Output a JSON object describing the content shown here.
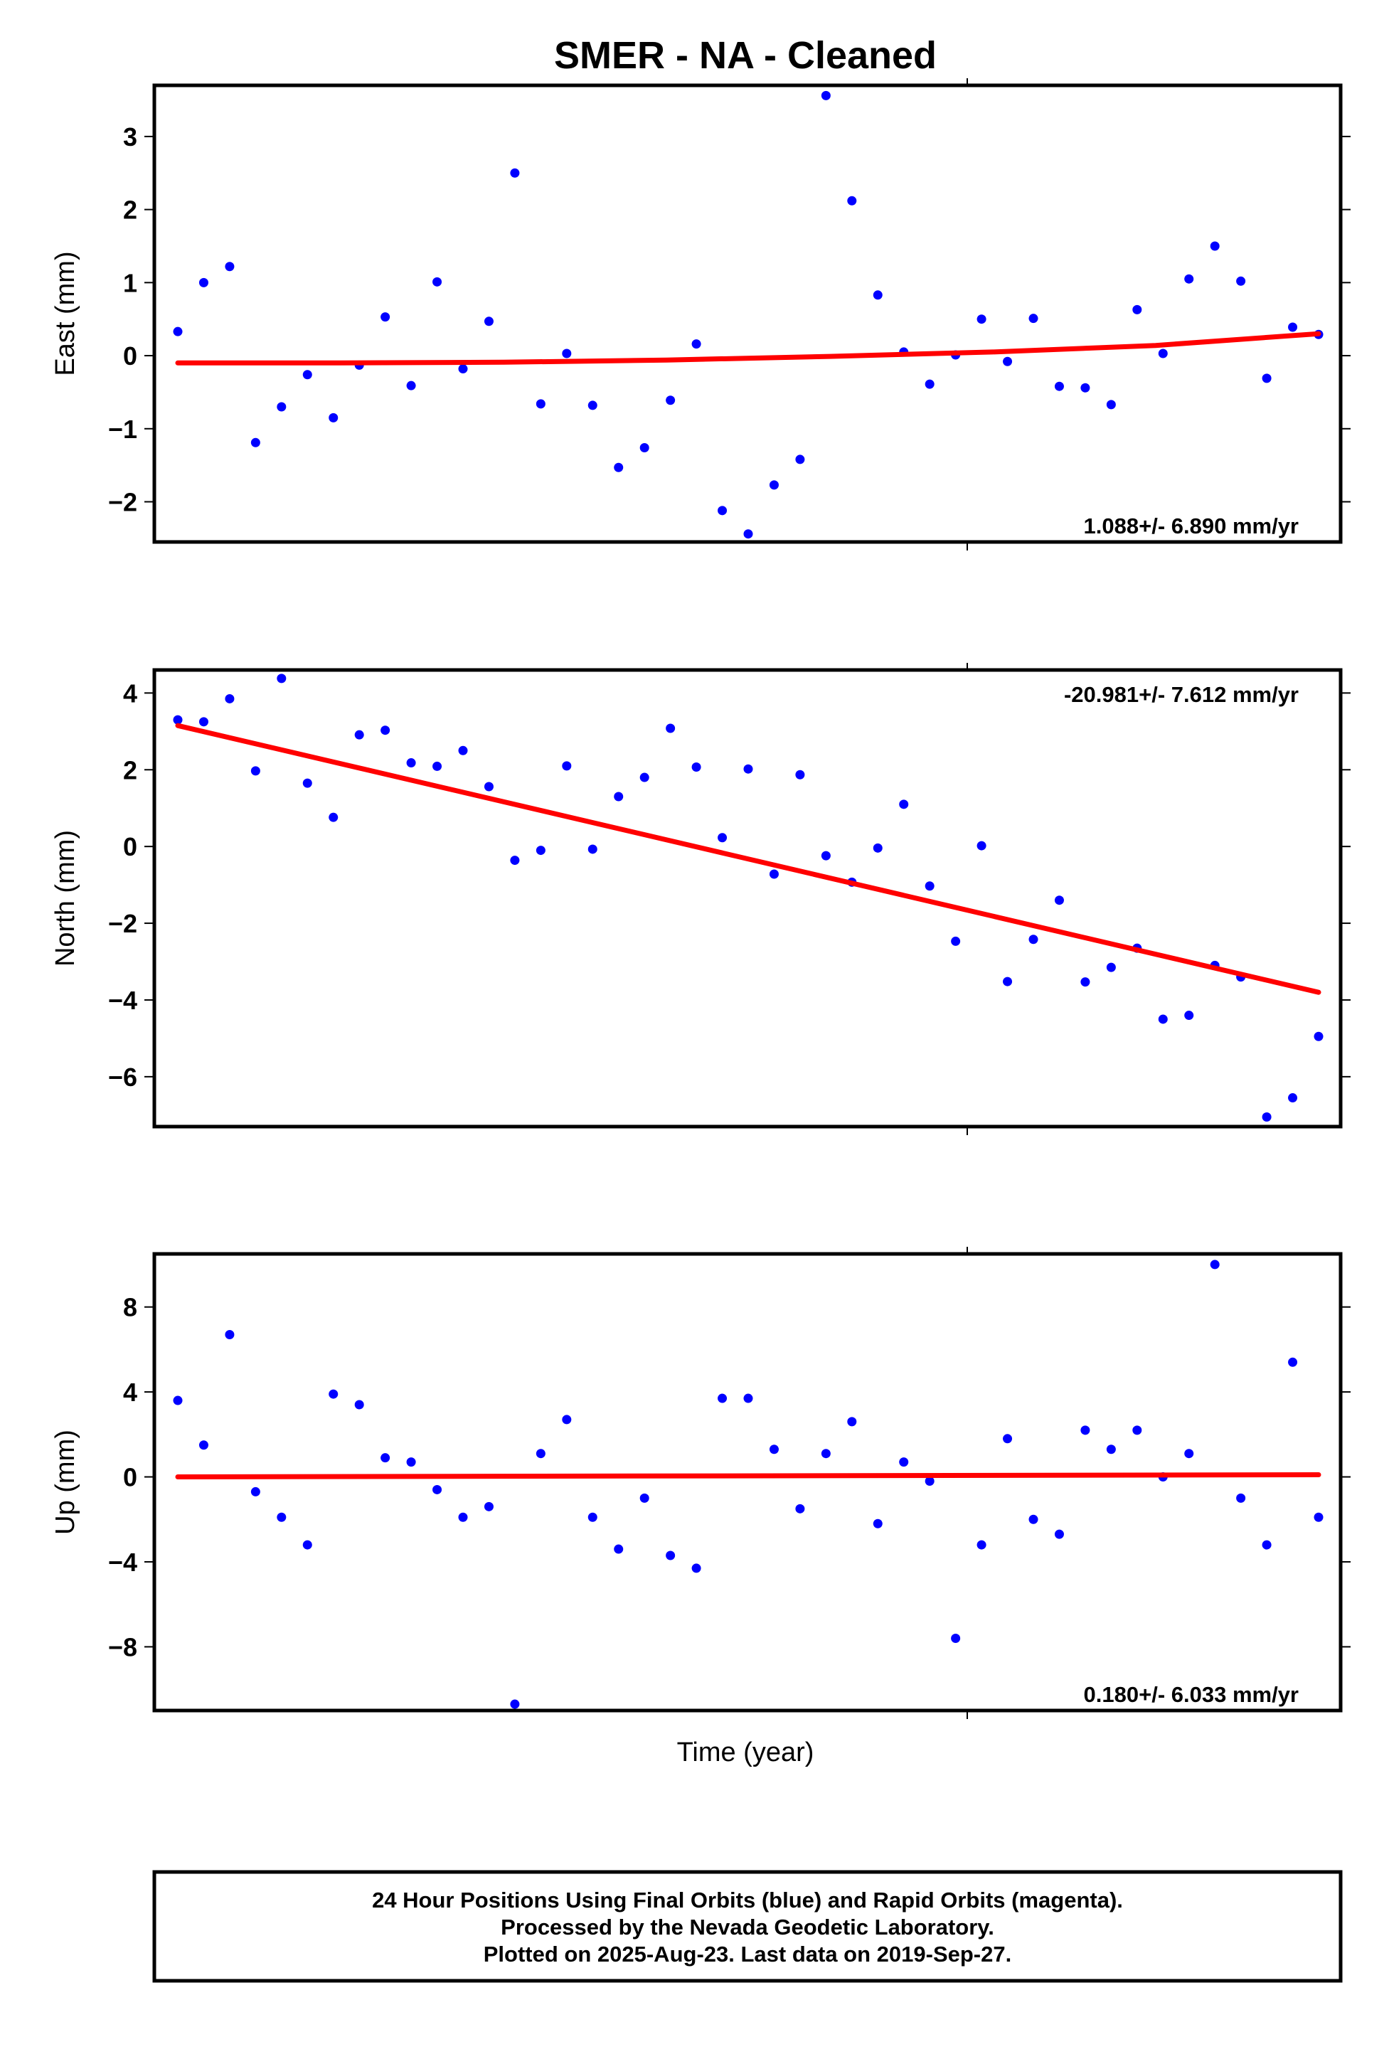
{
  "title": "SMER  - NA - Cleaned",
  "xlabel": "Time (year)",
  "footer": {
    "line1": "24 Hour Positions Using Final Orbits (blue) and Rapid Orbits (magenta).",
    "line2": "Processed by the Nevada Geodetic Laboratory.",
    "line3": "Plotted on 2025-Aug-23. Last data on 2019-Sep-27."
  },
  "colors": {
    "points": "#0000ff",
    "fit": "#ff0000",
    "frame": "#000000"
  },
  "chart_data": [
    {
      "type": "scatter",
      "ylabel": "East (mm)",
      "ylim": [
        -2.55,
        3.7
      ],
      "yticks": [
        3,
        2,
        1,
        0,
        -1,
        -2
      ],
      "rate": "1.088+/- 6.890 mm/yr",
      "rate_position": "bottom-right",
      "trend": [
        -0.1,
        -0.1,
        -0.09,
        -0.06,
        -0.01,
        0.05,
        0.14,
        0.3
      ],
      "y": [
        0.33,
        1.0,
        1.22,
        -1.19,
        -0.7,
        -0.26,
        -0.85,
        -0.13,
        0.53,
        -0.41,
        1.01,
        -0.18,
        0.47,
        2.5,
        -0.66,
        0.03,
        -0.68,
        -1.53,
        -1.26,
        -0.61,
        0.16,
        -2.12,
        -2.44,
        -1.77,
        -1.42,
        3.56,
        2.12,
        0.83,
        0.05,
        -0.39,
        0.01,
        0.5,
        -0.08,
        0.51,
        -0.42,
        -0.44,
        -0.67,
        0.63,
        0.03,
        1.05,
        1.5,
        1.02,
        -0.31,
        0.39,
        0.29
      ]
    },
    {
      "type": "scatter",
      "ylabel": "North (mm)",
      "ylim": [
        -7.3,
        4.6
      ],
      "yticks": [
        4,
        2,
        0,
        -2,
        -4,
        -6
      ],
      "rate": "-20.981+/- 7.612 mm/yr",
      "rate_position": "top-right",
      "trend": [
        3.15,
        -3.8
      ],
      "y": [
        3.3,
        3.25,
        3.85,
        1.97,
        4.38,
        1.65,
        0.76,
        2.91,
        3.03,
        2.18,
        2.09,
        2.5,
        1.56,
        -0.36,
        -0.1,
        2.1,
        -0.07,
        1.3,
        1.8,
        3.08,
        2.07,
        0.23,
        2.02,
        -0.72,
        1.87,
        -0.24,
        -0.93,
        -0.04,
        1.1,
        -1.03,
        -2.47,
        0.02,
        -3.52,
        -2.42,
        -1.4,
        -3.53,
        -3.15,
        -2.65,
        -4.5,
        -4.4,
        -3.1,
        -3.4,
        -7.05,
        -6.55,
        -4.95
      ]
    },
    {
      "type": "scatter",
      "ylabel": "Up (mm)",
      "ylim": [
        -11.0,
        10.5
      ],
      "yticks": [
        8,
        4,
        0,
        -4,
        -8
      ],
      "rate": "0.180+/- 6.033 mm/yr",
      "rate_position": "bottom-right",
      "trend": [
        0.0,
        0.1
      ],
      "y": [
        3.6,
        1.5,
        6.7,
        -0.7,
        -1.9,
        -3.2,
        3.9,
        3.4,
        0.9,
        0.7,
        -0.6,
        -1.9,
        -1.4,
        -10.7,
        1.1,
        2.7,
        -1.9,
        -3.4,
        -1.0,
        -3.7,
        -4.3,
        3.7,
        3.7,
        1.3,
        -1.5,
        1.1,
        2.6,
        -2.2,
        0.7,
        -0.2,
        -7.6,
        -3.2,
        1.8,
        -2.0,
        -2.7,
        2.2,
        1.3,
        2.2,
        0.0,
        1.1,
        10.0,
        -1.0,
        -3.2,
        5.4,
        -1.9
      ]
    }
  ]
}
